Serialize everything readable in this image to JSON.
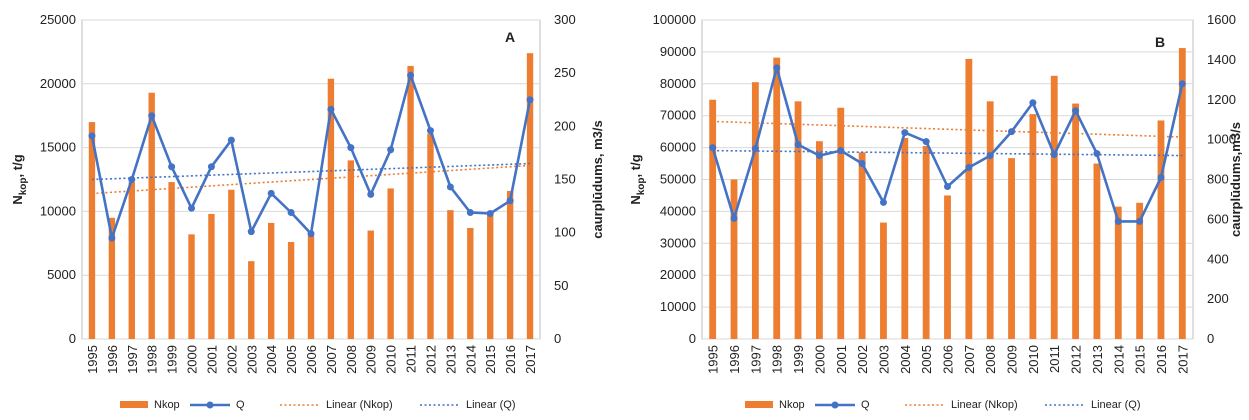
{
  "colors": {
    "bars": "#ED7D31",
    "line": "#4472C4",
    "trend_nkop": "#ED7D31",
    "trend_q": "#4472C4",
    "grid": "#d9d9d9",
    "axis": "#bfbfbf"
  },
  "legend": {
    "nkop": "Nkop",
    "q": "Q",
    "lin_nkop": "Linear (Nkop)",
    "lin_q": "Linear (Q)"
  },
  "chart_data": [
    {
      "type": "bar",
      "label": "A",
      "categories": [
        "1995",
        "1996",
        "1997",
        "1998",
        "1999",
        "2000",
        "2001",
        "2002",
        "2003",
        "2004",
        "2005",
        "2006",
        "2007",
        "2008",
        "2009",
        "2010",
        "2011",
        "2012",
        "2013",
        "2014",
        "2015",
        "2016",
        "2017"
      ],
      "ylabel": "N_kop, t/g",
      "ylabel_main": "N",
      "ylabel_sub": "kop",
      "ylabel_rest": ", t/g",
      "y2label": "caurplūdums, m3/s",
      "ylim": [
        0,
        25000
      ],
      "yticks": [
        0,
        5000,
        10000,
        15000,
        20000,
        25000
      ],
      "y2lim": [
        0,
        300
      ],
      "y2ticks": [
        0,
        50,
        100,
        150,
        200,
        250,
        300
      ],
      "series": [
        {
          "name": "Nkop",
          "axis": "left",
          "type": "bar",
          "values": [
            17000,
            9500,
            12300,
            19300,
            12300,
            8200,
            9800,
            11700,
            6100,
            9100,
            7600,
            8100,
            20400,
            14000,
            8500,
            11800,
            21400,
            16100,
            10100,
            8700,
            10000,
            11600,
            22400
          ]
        },
        {
          "name": "Q",
          "axis": "right",
          "type": "line",
          "values": [
            191,
            95,
            150,
            210,
            162,
            123,
            162,
            187,
            101,
            137,
            119,
            99,
            216,
            180,
            136,
            178,
            248,
            196,
            143,
            119,
            118,
            130,
            225
          ]
        }
      ],
      "trendlines": [
        {
          "name": "Linear (Nkop)",
          "axis": "left",
          "start": 11400,
          "end": 13600
        },
        {
          "name": "Linear (Q)",
          "axis": "right",
          "start": 150,
          "end": 165
        }
      ],
      "grid": true,
      "legend_position": "bottom"
    },
    {
      "type": "bar",
      "label": "B",
      "categories": [
        "1995",
        "1996",
        "1997",
        "1998",
        "1999",
        "2000",
        "2001",
        "2002",
        "2003",
        "2004",
        "2005",
        "2006",
        "2007",
        "2008",
        "2009",
        "2010",
        "2011",
        "2012",
        "2013",
        "2014",
        "2015",
        "2016",
        "2017"
      ],
      "ylabel": "N_kop, t/g",
      "ylabel_main": "N",
      "ylabel_sub": "kop",
      "ylabel_rest": ", t/g",
      "y2label": "caurplūdums,m3/s",
      "ylim": [
        0,
        100000
      ],
      "yticks": [
        0,
        10000,
        20000,
        30000,
        40000,
        50000,
        60000,
        70000,
        80000,
        90000,
        100000
      ],
      "y2lim": [
        0,
        1600
      ],
      "y2ticks": [
        0,
        200,
        400,
        600,
        800,
        1000,
        1200,
        1400,
        1600
      ],
      "series": [
        {
          "name": "Nkop",
          "axis": "left",
          "type": "bar",
          "values": [
            75000,
            50000,
            80500,
            88200,
            74500,
            62000,
            72500,
            58500,
            36500,
            63000,
            60500,
            45000,
            87800,
            74500,
            56700,
            70500,
            82500,
            73800,
            55000,
            41500,
            42700,
            68500,
            91200
          ]
        },
        {
          "name": "Q",
          "axis": "right",
          "type": "line",
          "values": [
            960,
            605,
            955,
            1360,
            975,
            920,
            945,
            880,
            685,
            1035,
            990,
            765,
            860,
            920,
            1040,
            1185,
            925,
            1145,
            930,
            590,
            590,
            810,
            1280
          ]
        }
      ],
      "trendlines": [
        {
          "name": "Linear (Nkop)",
          "axis": "left",
          "start": 68200,
          "end": 63300
        },
        {
          "name": "Linear (Q)",
          "axis": "right",
          "start": 945,
          "end": 920
        }
      ],
      "grid": true,
      "legend_position": "bottom"
    }
  ]
}
